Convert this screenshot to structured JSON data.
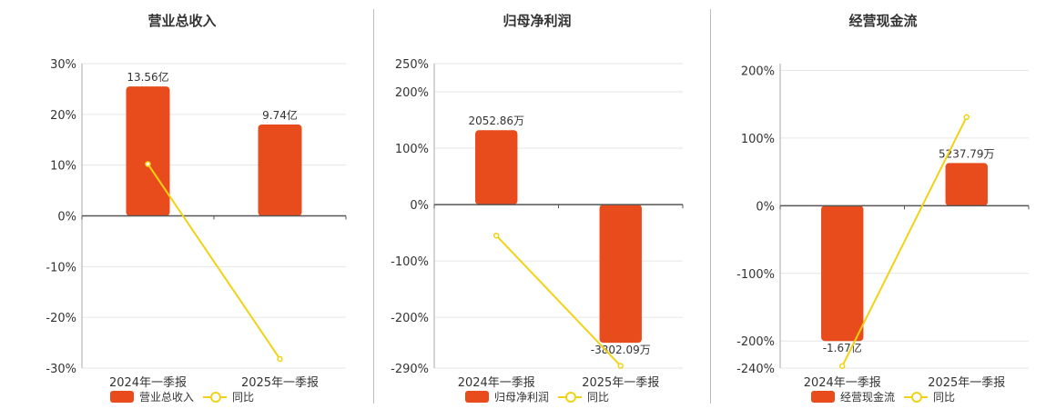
{
  "colors": {
    "bar": "#e84c1d",
    "line": "#f2d214",
    "axis": "#555555",
    "grid": "#e6e6e6"
  },
  "chart_data": [
    {
      "type": "bar",
      "title": "营业总收入",
      "categories": [
        "2024年一季报",
        "2025年一季报"
      ],
      "series": [
        {
          "name": "营业总收入",
          "type": "bar",
          "values": [
            25.5,
            18.0
          ],
          "labels": [
            "13.56亿",
            "9.74亿"
          ]
        },
        {
          "name": "同比",
          "type": "line",
          "values": [
            10.2,
            -28.2
          ]
        }
      ],
      "ylim": [
        -30,
        30
      ],
      "yticks": [
        30,
        20,
        10,
        0,
        -10,
        -20,
        -30
      ],
      "ytick_labels": [
        "30%",
        "20%",
        "10%",
        "0%",
        "-10%",
        "-20%",
        "-30%"
      ],
      "legend": [
        "营业总收入",
        "同比"
      ]
    },
    {
      "type": "bar",
      "title": "归母净利润",
      "categories": [
        "2024年一季报",
        "2025年一季报"
      ],
      "series": [
        {
          "name": "归母净利润",
          "type": "bar",
          "values": [
            132,
            -245
          ],
          "labels": [
            "2052.86万",
            "-3802.09万"
          ]
        },
        {
          "name": "同比",
          "type": "line",
          "values": [
            -55,
            -286
          ]
        }
      ],
      "ylim": [
        -290,
        250
      ],
      "yticks": [
        250,
        200,
        100,
        0,
        -100,
        -200,
        -290
      ],
      "ytick_labels": [
        "250%",
        "200%",
        "100%",
        "0%",
        "-100%",
        "-200%",
        "-290%"
      ],
      "legend": [
        "归母净利润",
        "同比"
      ]
    },
    {
      "type": "bar",
      "title": "经营现金流",
      "categories": [
        "2024年一季报",
        "2025年一季报"
      ],
      "series": [
        {
          "name": "经营现金流",
          "type": "bar",
          "values": [
            -200,
            63
          ],
          "labels": [
            "-1.67亿",
            "5237.79万"
          ]
        },
        {
          "name": "同比",
          "type": "line",
          "values": [
            -237,
            131
          ]
        }
      ],
      "ylim": [
        -240,
        210
      ],
      "yticks": [
        200,
        100,
        0,
        -100,
        -200,
        -240
      ],
      "ytick_labels": [
        "200%",
        "100%",
        "0%",
        "-100%",
        "-200%",
        "-240%"
      ],
      "legend": [
        "经营现金流",
        "同比"
      ]
    }
  ]
}
